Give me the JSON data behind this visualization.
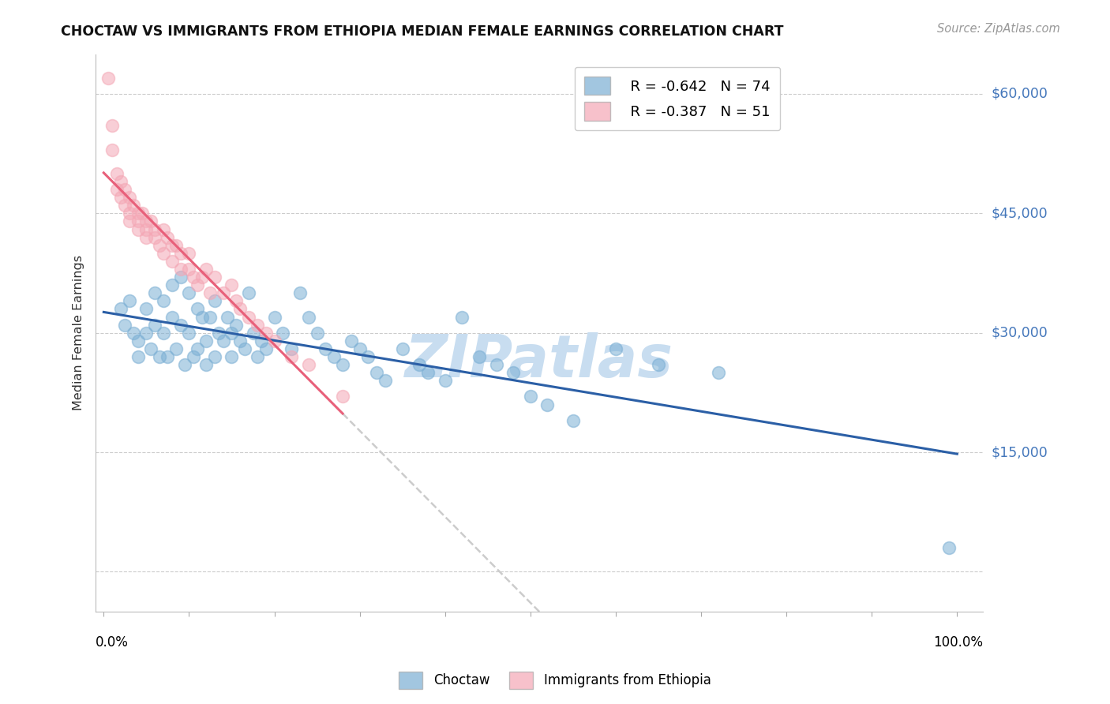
{
  "title": "CHOCTAW VS IMMIGRANTS FROM ETHIOPIA MEDIAN FEMALE EARNINGS CORRELATION CHART",
  "source": "Source: ZipAtlas.com",
  "ylabel": "Median Female Earnings",
  "ymax": 65000,
  "ymin": -5000,
  "legend_blue_r": "R = -0.642",
  "legend_blue_n": "N = 74",
  "legend_pink_r": "R = -0.387",
  "legend_pink_n": "N = 51",
  "blue_color": "#7BAFD4",
  "pink_color": "#F4A7B5",
  "trendline_blue": "#2B5FA6",
  "trendline_pink": "#E8607A",
  "trendline_dashed_color": "#CCCCCC",
  "watermark": "ZIPatlas",
  "watermark_color": "#C8DDF0",
  "choctaw_x": [
    0.02,
    0.025,
    0.03,
    0.035,
    0.04,
    0.04,
    0.05,
    0.05,
    0.055,
    0.06,
    0.06,
    0.065,
    0.07,
    0.07,
    0.075,
    0.08,
    0.08,
    0.085,
    0.09,
    0.09,
    0.095,
    0.1,
    0.1,
    0.105,
    0.11,
    0.11,
    0.115,
    0.12,
    0.12,
    0.125,
    0.13,
    0.13,
    0.135,
    0.14,
    0.145,
    0.15,
    0.15,
    0.155,
    0.16,
    0.165,
    0.17,
    0.175,
    0.18,
    0.185,
    0.19,
    0.2,
    0.21,
    0.22,
    0.23,
    0.24,
    0.25,
    0.26,
    0.27,
    0.28,
    0.29,
    0.3,
    0.31,
    0.32,
    0.33,
    0.35,
    0.37,
    0.38,
    0.4,
    0.42,
    0.44,
    0.46,
    0.48,
    0.5,
    0.52,
    0.55,
    0.6,
    0.65,
    0.72,
    0.99
  ],
  "choctaw_y": [
    33000,
    31000,
    34000,
    30000,
    29000,
    27000,
    33000,
    30000,
    28000,
    35000,
    31000,
    27000,
    34000,
    30000,
    27000,
    36000,
    32000,
    28000,
    37000,
    31000,
    26000,
    35000,
    30000,
    27000,
    33000,
    28000,
    32000,
    29000,
    26000,
    32000,
    34000,
    27000,
    30000,
    29000,
    32000,
    30000,
    27000,
    31000,
    29000,
    28000,
    35000,
    30000,
    27000,
    29000,
    28000,
    32000,
    30000,
    28000,
    35000,
    32000,
    30000,
    28000,
    27000,
    26000,
    29000,
    28000,
    27000,
    25000,
    24000,
    28000,
    26000,
    25000,
    24000,
    32000,
    27000,
    26000,
    25000,
    22000,
    21000,
    19000,
    28000,
    26000,
    25000,
    3000
  ],
  "ethiopia_x": [
    0.005,
    0.01,
    0.01,
    0.015,
    0.015,
    0.02,
    0.02,
    0.025,
    0.025,
    0.03,
    0.03,
    0.03,
    0.035,
    0.04,
    0.04,
    0.04,
    0.045,
    0.05,
    0.05,
    0.05,
    0.055,
    0.06,
    0.06,
    0.065,
    0.07,
    0.07,
    0.075,
    0.08,
    0.08,
    0.085,
    0.09,
    0.09,
    0.1,
    0.1,
    0.105,
    0.11,
    0.115,
    0.12,
    0.125,
    0.13,
    0.14,
    0.15,
    0.155,
    0.16,
    0.17,
    0.18,
    0.19,
    0.2,
    0.22,
    0.24,
    0.28
  ],
  "ethiopia_y": [
    62000,
    56000,
    53000,
    50000,
    48000,
    49000,
    47000,
    48000,
    46000,
    47000,
    45000,
    44000,
    46000,
    45000,
    44000,
    43000,
    45000,
    44000,
    43000,
    42000,
    44000,
    43000,
    42000,
    41000,
    43000,
    40000,
    42000,
    41000,
    39000,
    41000,
    40000,
    38000,
    40000,
    38000,
    37000,
    36000,
    37000,
    38000,
    35000,
    37000,
    35000,
    36000,
    34000,
    33000,
    32000,
    31000,
    30000,
    29000,
    27000,
    26000,
    22000
  ]
}
